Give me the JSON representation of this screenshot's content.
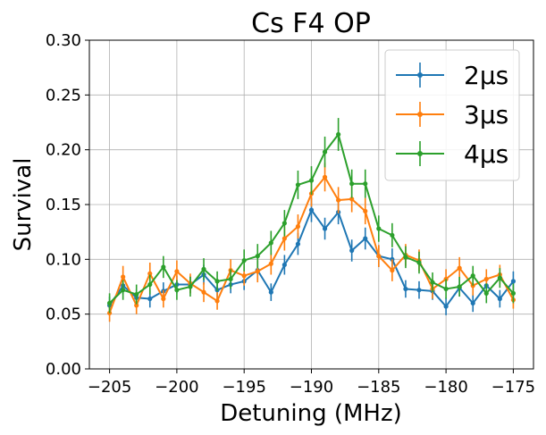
{
  "chart_data": {
    "type": "line",
    "title": "Cs F4 OP",
    "xlabel": "Detuning (MHz)",
    "ylabel": "Survival",
    "xlim": [
      -206.5,
      -173.5
    ],
    "ylim": [
      0.0,
      0.3
    ],
    "xticks": [
      -205,
      -200,
      -195,
      -190,
      -185,
      -180,
      -175
    ],
    "xtick_labels": [
      "−205",
      "−200",
      "−195",
      "−190",
      "−185",
      "−180",
      "−175"
    ],
    "yticks": [
      0.0,
      0.05,
      0.1,
      0.15,
      0.2,
      0.25,
      0.3
    ],
    "ytick_labels": [
      "0.00",
      "0.05",
      "0.10",
      "0.15",
      "0.20",
      "0.25",
      "0.30"
    ],
    "grid": true,
    "legend_position": "top-right",
    "x": [
      -205,
      -204,
      -203,
      -202,
      -201,
      -200,
      -199,
      -198,
      -197,
      -196,
      -195,
      -194,
      -193,
      -192,
      -191,
      -190,
      -189,
      -188,
      -187,
      -186,
      -185,
      -184,
      -183,
      -182,
      -181,
      -180,
      -179,
      -178,
      -177,
      -176,
      -175
    ],
    "series": [
      {
        "name": "2μs",
        "color": "#1f77b4",
        "values": [
          0.058,
          0.076,
          0.065,
          0.064,
          0.071,
          0.077,
          0.077,
          0.086,
          0.072,
          0.077,
          0.08,
          0.09,
          0.07,
          0.095,
          0.114,
          0.145,
          0.128,
          0.143,
          0.108,
          0.119,
          0.103,
          0.1,
          0.073,
          0.072,
          0.071,
          0.057,
          0.074,
          0.06,
          0.076,
          0.064,
          0.08
        ],
        "errors": [
          0.008,
          0.008,
          0.008,
          0.008,
          0.008,
          0.008,
          0.008,
          0.009,
          0.008,
          0.008,
          0.008,
          0.009,
          0.008,
          0.009,
          0.01,
          0.011,
          0.01,
          0.011,
          0.01,
          0.01,
          0.01,
          0.01,
          0.008,
          0.008,
          0.008,
          0.008,
          0.008,
          0.008,
          0.008,
          0.008,
          0.009
        ]
      },
      {
        "name": "3μs",
        "color": "#ff7f0e",
        "values": [
          0.051,
          0.084,
          0.058,
          0.087,
          0.064,
          0.089,
          0.078,
          0.07,
          0.062,
          0.09,
          0.085,
          0.089,
          0.096,
          0.119,
          0.13,
          0.16,
          0.175,
          0.154,
          0.155,
          0.144,
          0.103,
          0.09,
          0.104,
          0.099,
          0.073,
          0.082,
          0.092,
          0.076,
          0.082,
          0.086,
          0.063
        ],
        "errors": [
          0.008,
          0.01,
          0.008,
          0.01,
          0.008,
          0.01,
          0.009,
          0.009,
          0.008,
          0.01,
          0.009,
          0.01,
          0.01,
          0.011,
          0.011,
          0.012,
          0.013,
          0.012,
          0.012,
          0.012,
          0.01,
          0.01,
          0.01,
          0.01,
          0.009,
          0.009,
          0.01,
          0.009,
          0.009,
          0.009,
          0.008
        ]
      },
      {
        "name": "4μs",
        "color": "#2ca02c",
        "values": [
          0.06,
          0.072,
          0.068,
          0.077,
          0.093,
          0.072,
          0.075,
          0.091,
          0.08,
          0.082,
          0.099,
          0.103,
          0.115,
          0.133,
          0.168,
          0.172,
          0.198,
          0.214,
          0.169,
          0.169,
          0.128,
          0.122,
          0.102,
          0.097,
          0.079,
          0.073,
          0.075,
          0.085,
          0.069,
          0.083,
          0.069
        ],
        "errors": [
          0.009,
          0.009,
          0.009,
          0.009,
          0.01,
          0.009,
          0.009,
          0.01,
          0.009,
          0.009,
          0.01,
          0.011,
          0.011,
          0.012,
          0.013,
          0.013,
          0.014,
          0.015,
          0.013,
          0.013,
          0.012,
          0.011,
          0.01,
          0.01,
          0.009,
          0.009,
          0.009,
          0.009,
          0.009,
          0.009,
          0.009
        ]
      }
    ]
  }
}
